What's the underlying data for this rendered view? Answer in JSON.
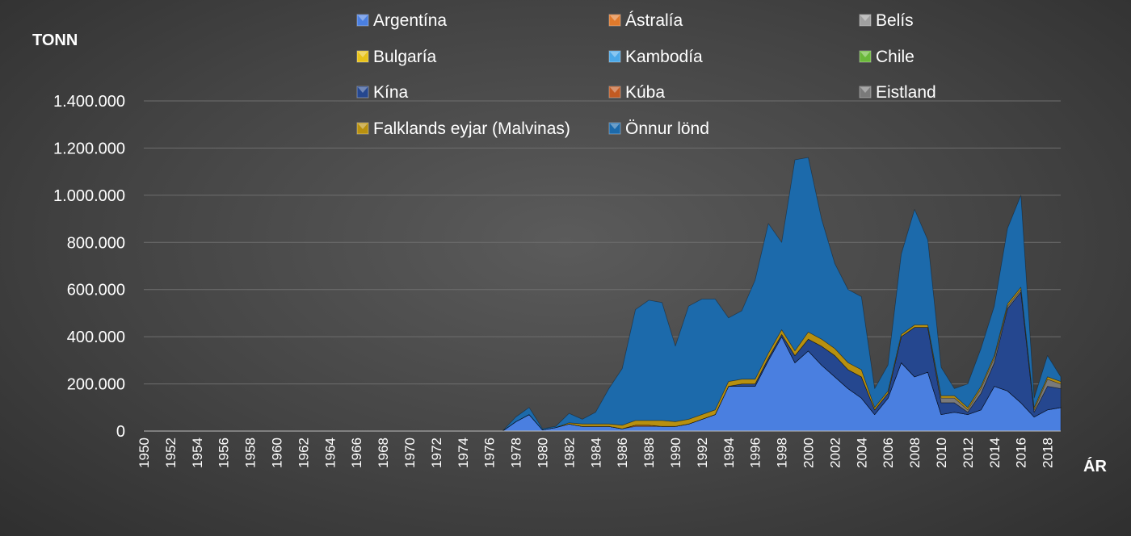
{
  "chart_data": {
    "type": "area",
    "stacked": true,
    "ylabel": "TONN",
    "xlabel": "ÁR",
    "ylim": [
      0,
      1400000
    ],
    "y_ticks": [
      0,
      200000,
      400000,
      600000,
      800000,
      1000000,
      1200000,
      1400000
    ],
    "y_tick_labels": [
      "0",
      "200.000",
      "400.000",
      "600.000",
      "800.000",
      "1.000.000",
      "1.200.000",
      "1.400.000"
    ],
    "x_start": 1950,
    "x_end": 2019,
    "x_tick_labels": [
      "1950",
      "1952",
      "1954",
      "1956",
      "1958",
      "1960",
      "1962",
      "1964",
      "1966",
      "1968",
      "1970",
      "1972",
      "1974",
      "1976",
      "1978",
      "1980",
      "1982",
      "1984",
      "1986",
      "1988",
      "1990",
      "1992",
      "1994",
      "1996",
      "1998",
      "2000",
      "2002",
      "2004",
      "2006",
      "2008",
      "2010",
      "2012",
      "2014",
      "2016",
      "2018"
    ],
    "grid": true,
    "legend_position": "top",
    "series": [
      {
        "name": "Argentína",
        "color": "#4a7fe0",
        "values": [
          0,
          0,
          0,
          0,
          0,
          0,
          0,
          0,
          0,
          0,
          0,
          0,
          0,
          0,
          0,
          0,
          0,
          0,
          0,
          0,
          0,
          0,
          0,
          0,
          0,
          0,
          0,
          0,
          40000,
          70000,
          5000,
          15000,
          30000,
          20000,
          20000,
          20000,
          10000,
          20000,
          20000,
          20000,
          20000,
          30000,
          50000,
          70000,
          190000,
          190000,
          190000,
          300000,
          400000,
          290000,
          340000,
          280000,
          230000,
          180000,
          140000,
          70000,
          140000,
          290000,
          230000,
          250000,
          70000,
          80000,
          70000,
          90000,
          190000,
          170000,
          120000,
          60000,
          90000,
          100000
        ]
      },
      {
        "name": "Ástralía",
        "color": "#e07a2c",
        "values": [
          0,
          0,
          0,
          0,
          0,
          0,
          0,
          0,
          0,
          0,
          0,
          0,
          0,
          0,
          0,
          0,
          0,
          0,
          0,
          0,
          0,
          0,
          0,
          0,
          0,
          0,
          0,
          0,
          0,
          0,
          0,
          0,
          0,
          0,
          0,
          0,
          0,
          5000,
          5000,
          0,
          0,
          0,
          0,
          0,
          0,
          0,
          0,
          0,
          0,
          0,
          0,
          0,
          0,
          0,
          0,
          0,
          0,
          0,
          0,
          0,
          0,
          0,
          0,
          0,
          0,
          0,
          0,
          0,
          0,
          0
        ]
      },
      {
        "name": "Belís",
        "color": "#a0a0a0",
        "values": [
          0,
          0,
          0,
          0,
          0,
          0,
          0,
          0,
          0,
          0,
          0,
          0,
          0,
          0,
          0,
          0,
          0,
          0,
          0,
          0,
          0,
          0,
          0,
          0,
          0,
          0,
          0,
          0,
          0,
          0,
          0,
          0,
          0,
          0,
          0,
          0,
          0,
          0,
          0,
          0,
          0,
          0,
          0,
          0,
          0,
          0,
          0,
          0,
          0,
          0,
          0,
          0,
          0,
          0,
          0,
          0,
          0,
          0,
          0,
          0,
          0,
          0,
          0,
          0,
          0,
          0,
          0,
          0,
          0,
          0
        ]
      },
      {
        "name": "Bulgaría",
        "color": "#e8c21a",
        "values": [
          0,
          0,
          0,
          0,
          0,
          0,
          0,
          0,
          0,
          0,
          0,
          0,
          0,
          0,
          0,
          0,
          0,
          0,
          0,
          0,
          0,
          0,
          0,
          0,
          0,
          0,
          0,
          0,
          0,
          0,
          0,
          0,
          0,
          0,
          0,
          0,
          0,
          0,
          0,
          0,
          0,
          0,
          0,
          0,
          0,
          0,
          0,
          0,
          0,
          0,
          0,
          0,
          0,
          0,
          0,
          0,
          0,
          0,
          0,
          0,
          0,
          0,
          0,
          0,
          0,
          0,
          0,
          0,
          0,
          0
        ]
      },
      {
        "name": "Kambodía",
        "color": "#4aa8e8",
        "values": [
          0,
          0,
          0,
          0,
          0,
          0,
          0,
          0,
          0,
          0,
          0,
          0,
          0,
          0,
          0,
          0,
          0,
          0,
          0,
          0,
          0,
          0,
          0,
          0,
          0,
          0,
          0,
          0,
          0,
          0,
          0,
          0,
          0,
          0,
          0,
          0,
          0,
          0,
          0,
          0,
          0,
          0,
          0,
          0,
          0,
          0,
          0,
          0,
          0,
          0,
          0,
          0,
          0,
          0,
          0,
          0,
          0,
          0,
          0,
          0,
          0,
          0,
          0,
          0,
          0,
          0,
          0,
          0,
          0,
          0
        ]
      },
      {
        "name": "Chile",
        "color": "#6ab83a",
        "values": [
          0,
          0,
          0,
          0,
          0,
          0,
          0,
          0,
          0,
          0,
          0,
          0,
          0,
          0,
          0,
          0,
          0,
          0,
          0,
          0,
          0,
          0,
          0,
          0,
          0,
          0,
          0,
          0,
          0,
          0,
          0,
          0,
          0,
          0,
          0,
          0,
          0,
          0,
          0,
          0,
          0,
          0,
          0,
          0,
          0,
          0,
          0,
          0,
          0,
          0,
          0,
          0,
          0,
          0,
          0,
          0,
          0,
          0,
          0,
          0,
          0,
          0,
          0,
          0,
          0,
          0,
          0,
          0,
          0,
          0
        ]
      },
      {
        "name": "Kína",
        "color": "#25478f",
        "values": [
          0,
          0,
          0,
          0,
          0,
          0,
          0,
          0,
          0,
          0,
          0,
          0,
          0,
          0,
          0,
          0,
          0,
          0,
          0,
          0,
          0,
          0,
          0,
          0,
          0,
          0,
          0,
          0,
          0,
          0,
          0,
          0,
          0,
          0,
          0,
          0,
          0,
          0,
          0,
          0,
          0,
          0,
          0,
          0,
          0,
          10000,
          10000,
          10000,
          10000,
          30000,
          50000,
          80000,
          90000,
          80000,
          90000,
          20000,
          20000,
          110000,
          210000,
          190000,
          50000,
          40000,
          10000,
          70000,
          100000,
          350000,
          470000,
          20000,
          100000,
          80000
        ]
      },
      {
        "name": "Kúba",
        "color": "#c25a22",
        "values": [
          0,
          0,
          0,
          0,
          0,
          0,
          0,
          0,
          0,
          0,
          0,
          0,
          0,
          0,
          0,
          0,
          0,
          0,
          0,
          0,
          0,
          0,
          0,
          0,
          0,
          0,
          0,
          0,
          0,
          0,
          0,
          0,
          0,
          0,
          0,
          0,
          0,
          0,
          0,
          0,
          0,
          0,
          0,
          0,
          0,
          0,
          0,
          0,
          0,
          0,
          0,
          0,
          0,
          0,
          0,
          0,
          0,
          0,
          0,
          0,
          0,
          0,
          0,
          0,
          0,
          0,
          0,
          0,
          0,
          0
        ]
      },
      {
        "name": "Eistland",
        "color": "#7a7a7a",
        "values": [
          0,
          0,
          0,
          0,
          0,
          0,
          0,
          0,
          0,
          0,
          0,
          0,
          0,
          0,
          0,
          0,
          0,
          0,
          0,
          0,
          0,
          0,
          0,
          0,
          0,
          0,
          0,
          0,
          0,
          0,
          0,
          0,
          0,
          0,
          0,
          0,
          0,
          0,
          0,
          0,
          0,
          0,
          0,
          0,
          0,
          0,
          0,
          0,
          0,
          0,
          0,
          0,
          0,
          0,
          0,
          0,
          0,
          0,
          0,
          0,
          20000,
          20000,
          10000,
          20000,
          20000,
          10000,
          10000,
          10000,
          30000,
          20000
        ]
      },
      {
        "name": "Falklands eyjar (Malvinas)",
        "color": "#b8900f",
        "values": [
          0,
          0,
          0,
          0,
          0,
          0,
          0,
          0,
          0,
          0,
          0,
          0,
          0,
          0,
          0,
          0,
          0,
          0,
          0,
          0,
          0,
          0,
          0,
          0,
          0,
          0,
          0,
          0,
          0,
          0,
          0,
          0,
          5000,
          10000,
          10000,
          10000,
          15000,
          20000,
          20000,
          25000,
          20000,
          20000,
          20000,
          20000,
          20000,
          20000,
          20000,
          20000,
          20000,
          20000,
          30000,
          30000,
          30000,
          30000,
          30000,
          10000,
          10000,
          10000,
          10000,
          10000,
          10000,
          10000,
          10000,
          10000,
          10000,
          10000,
          10000,
          10000,
          10000,
          10000
        ]
      },
      {
        "name": "Önnur lönd",
        "color": "#1c6aab",
        "values": [
          0,
          0,
          0,
          0,
          0,
          0,
          0,
          0,
          0,
          0,
          0,
          0,
          0,
          0,
          0,
          0,
          0,
          0,
          0,
          0,
          0,
          0,
          0,
          0,
          0,
          0,
          0,
          0,
          20000,
          30000,
          5000,
          5000,
          40000,
          20000,
          50000,
          150000,
          240000,
          470000,
          510000,
          500000,
          320000,
          480000,
          490000,
          470000,
          270000,
          290000,
          420000,
          550000,
          370000,
          810000,
          740000,
          510000,
          360000,
          310000,
          310000,
          80000,
          110000,
          340000,
          490000,
          360000,
          120000,
          30000,
          100000,
          160000,
          210000,
          320000,
          390000,
          40000,
          90000,
          20000
        ]
      }
    ]
  }
}
